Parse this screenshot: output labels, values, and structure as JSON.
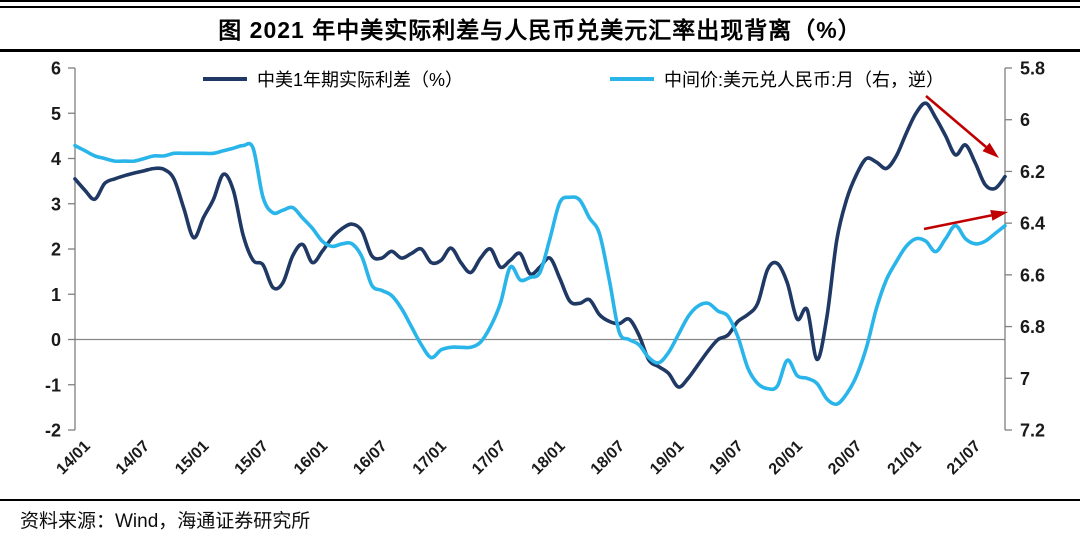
{
  "header": {
    "title": "图 2021 年中美实际利差与人民币兑美元汇率出现背离（%）"
  },
  "footer": {
    "source": "资料来源：Wind，海通证券研究所"
  },
  "chart_data": {
    "type": "line",
    "title": "图 2021 年中美实际利差与人民币兑美元汇率出现背离（%）",
    "x_start": "2014/01",
    "x_end": "2021/11",
    "x_frequency": "monthly",
    "x_tick_labels": [
      "14/01",
      "14/07",
      "15/01",
      "15/07",
      "16/01",
      "16/07",
      "17/01",
      "17/07",
      "18/01",
      "18/07",
      "19/01",
      "19/07",
      "20/01",
      "20/07",
      "21/01",
      "21/07"
    ],
    "left_axis": {
      "min": -2,
      "max": 6,
      "ticks": [
        "6",
        "5",
        "4",
        "3",
        "2",
        "1",
        "0",
        "-1",
        "-2"
      ]
    },
    "right_axis": {
      "min": 5.8,
      "max": 7.2,
      "inverted": true,
      "ticks": [
        "5.8",
        "6",
        "6.2",
        "6.4",
        "6.6",
        "6.8",
        "7",
        "7.2"
      ]
    },
    "gridlines": "zero-line-only",
    "legend_position": "top",
    "colors": {
      "axis": "#7f7f7f",
      "zero_line": "#888888",
      "arrow": "#C00000",
      "label": "#1a1a1a"
    },
    "series": [
      {
        "name": "中美1年期实际利差（%）",
        "axis": "left",
        "color": "#1F3864",
        "values": [
          3.55,
          3.3,
          3.1,
          3.45,
          3.55,
          3.62,
          3.68,
          3.73,
          3.78,
          3.76,
          3.55,
          2.9,
          2.25,
          2.7,
          3.1,
          3.65,
          3.3,
          2.3,
          1.75,
          1.65,
          1.15,
          1.25,
          1.85,
          2.1,
          1.7,
          1.95,
          2.25,
          2.45,
          2.55,
          2.4,
          1.85,
          1.8,
          1.95,
          1.8,
          1.9,
          2.0,
          1.7,
          1.75,
          2.02,
          1.7,
          1.48,
          1.8,
          2.0,
          1.6,
          1.75,
          1.9,
          1.45,
          1.6,
          1.8,
          1.35,
          0.85,
          0.8,
          0.88,
          0.55,
          0.4,
          0.35,
          0.45,
          0.1,
          -0.45,
          -0.6,
          -0.75,
          -1.05,
          -0.85,
          -0.55,
          -0.25,
          0.0,
          0.1,
          0.4,
          0.55,
          0.8,
          1.55,
          1.68,
          1.25,
          0.45,
          0.66,
          -0.44,
          0.5,
          2.2,
          3.1,
          3.65,
          4.0,
          3.92,
          3.78,
          4.05,
          4.55,
          5.0,
          5.22,
          4.9,
          4.5,
          4.08,
          4.3,
          3.9,
          3.42,
          3.34,
          3.6
        ]
      },
      {
        "name": "中间价:美元兑人民币:月（右，逆）",
        "axis": "right",
        "color": "#29B5EA",
        "values": [
          6.1,
          6.12,
          6.14,
          6.15,
          6.16,
          6.16,
          6.16,
          6.15,
          6.14,
          6.14,
          6.13,
          6.13,
          6.13,
          6.13,
          6.13,
          6.12,
          6.11,
          6.1,
          6.11,
          6.3,
          6.36,
          6.35,
          6.34,
          6.38,
          6.42,
          6.47,
          6.49,
          6.48,
          6.48,
          6.53,
          6.64,
          6.66,
          6.68,
          6.73,
          6.8,
          6.87,
          6.92,
          6.89,
          6.88,
          6.88,
          6.88,
          6.86,
          6.8,
          6.71,
          6.57,
          6.62,
          6.61,
          6.59,
          6.46,
          6.32,
          6.3,
          6.31,
          6.38,
          6.44,
          6.62,
          6.82,
          6.85,
          6.87,
          6.92,
          6.94,
          6.9,
          6.83,
          6.76,
          6.72,
          6.71,
          6.74,
          6.76,
          6.84,
          6.96,
          7.02,
          7.04,
          7.03,
          6.93,
          6.99,
          7.0,
          7.02,
          7.08,
          7.1,
          7.06,
          6.99,
          6.88,
          6.73,
          6.62,
          6.55,
          6.49,
          6.46,
          6.47,
          6.51,
          6.46,
          6.41,
          6.46,
          6.48,
          6.47,
          6.44,
          6.41
        ]
      }
    ],
    "annotations": [
      {
        "type": "arrow",
        "color": "#C00000",
        "from_xy": [
          926,
          96
        ],
        "to_xy": [
          999,
          158
        ],
        "target": "end-of-rate-differential-line"
      },
      {
        "type": "arrow",
        "color": "#C00000",
        "from_xy": [
          924,
          229
        ],
        "to_xy": [
          1008,
          212
        ],
        "target": "end-of-usdcny-line"
      }
    ]
  }
}
